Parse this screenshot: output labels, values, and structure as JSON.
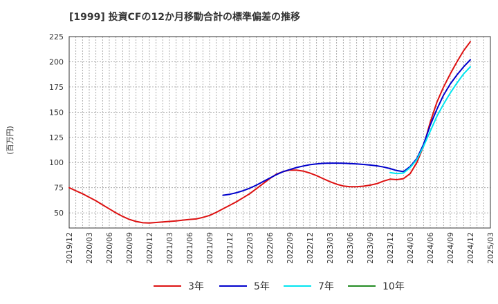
{
  "chart_data": {
    "type": "line",
    "title": "[1999]  投資CFの12か月移動合計の標準偏差の推移",
    "ylabel": "(百万円)",
    "xlabel": "",
    "ylim": [
      35,
      225
    ],
    "yticks": [
      50,
      75,
      100,
      125,
      150,
      175,
      200,
      225
    ],
    "xticks": [
      "2019/12",
      "2020/03",
      "2020/06",
      "2020/09",
      "2020/12",
      "2021/03",
      "2021/06",
      "2021/09",
      "2021/12",
      "2022/03",
      "2022/06",
      "2022/09",
      "2022/12",
      "2023/03",
      "2023/06",
      "2023/09",
      "2023/12",
      "2024/03",
      "2024/06",
      "2024/09",
      "2024/12",
      "2025/03"
    ],
    "grid": true,
    "legend_position": "bottom",
    "series": [
      {
        "name": "3年",
        "color": "#dd1111",
        "points": [
          [
            "2019/12",
            75
          ],
          [
            "2020/01",
            72
          ],
          [
            "2020/02",
            69
          ],
          [
            "2020/03",
            65.5
          ],
          [
            "2020/04",
            62
          ],
          [
            "2020/05",
            58
          ],
          [
            "2020/06",
            54
          ],
          [
            "2020/07",
            50
          ],
          [
            "2020/08",
            46.5
          ],
          [
            "2020/09",
            43.5
          ],
          [
            "2020/10",
            41.5
          ],
          [
            "2020/11",
            40.2
          ],
          [
            "2020/12",
            40
          ],
          [
            "2021/01",
            40.5
          ],
          [
            "2021/02",
            41
          ],
          [
            "2021/03",
            41.5
          ],
          [
            "2021/04",
            42
          ],
          [
            "2021/05",
            42.8
          ],
          [
            "2021/06",
            43.5
          ],
          [
            "2021/07",
            44
          ],
          [
            "2021/08",
            45.5
          ],
          [
            "2021/09",
            47.5
          ],
          [
            "2021/10",
            50.5
          ],
          [
            "2021/11",
            54
          ],
          [
            "2021/12",
            57.5
          ],
          [
            "2022/01",
            61
          ],
          [
            "2022/02",
            65
          ],
          [
            "2022/03",
            69
          ],
          [
            "2022/04",
            74
          ],
          [
            "2022/05",
            79
          ],
          [
            "2022/06",
            84
          ],
          [
            "2022/07",
            88.5
          ],
          [
            "2022/08",
            91
          ],
          [
            "2022/09",
            92.5
          ],
          [
            "2022/10",
            92.5
          ],
          [
            "2022/11",
            91.5
          ],
          [
            "2022/12",
            89.5
          ],
          [
            "2023/01",
            87
          ],
          [
            "2023/02",
            84
          ],
          [
            "2023/03",
            81
          ],
          [
            "2023/04",
            78.5
          ],
          [
            "2023/05",
            76.7
          ],
          [
            "2023/06",
            76
          ],
          [
            "2023/07",
            76
          ],
          [
            "2023/08",
            76.5
          ],
          [
            "2023/09",
            77.5
          ],
          [
            "2023/10",
            79
          ],
          [
            "2023/11",
            81.5
          ],
          [
            "2023/12",
            83.5
          ],
          [
            "2024/01",
            83
          ],
          [
            "2024/02",
            84
          ],
          [
            "2024/03",
            89
          ],
          [
            "2024/04",
            100
          ],
          [
            "2024/05",
            116
          ],
          [
            "2024/06",
            140
          ],
          [
            "2024/07",
            160
          ],
          [
            "2024/08",
            175
          ],
          [
            "2024/09",
            188
          ],
          [
            "2024/10",
            200
          ],
          [
            "2024/11",
            211
          ],
          [
            "2024/12",
            220
          ]
        ]
      },
      {
        "name": "5年",
        "color": "#0000cc",
        "points": [
          [
            "2021/11",
            67.5
          ],
          [
            "2021/12",
            68.5
          ],
          [
            "2022/01",
            70
          ],
          [
            "2022/02",
            72
          ],
          [
            "2022/03",
            74.5
          ],
          [
            "2022/04",
            77.5
          ],
          [
            "2022/05",
            81
          ],
          [
            "2022/06",
            84.5
          ],
          [
            "2022/07",
            88
          ],
          [
            "2022/08",
            91
          ],
          [
            "2022/09",
            93
          ],
          [
            "2022/10",
            95
          ],
          [
            "2022/11",
            96.5
          ],
          [
            "2022/12",
            97.8
          ],
          [
            "2023/01",
            98.6
          ],
          [
            "2023/02",
            99.2
          ],
          [
            "2023/03",
            99.4
          ],
          [
            "2023/04",
            99.4
          ],
          [
            "2023/05",
            99.3
          ],
          [
            "2023/06",
            99
          ],
          [
            "2023/07",
            98.6
          ],
          [
            "2023/08",
            98.1
          ],
          [
            "2023/09",
            97.5
          ],
          [
            "2023/10",
            96.7
          ],
          [
            "2023/11",
            95.6
          ],
          [
            "2023/12",
            94
          ],
          [
            "2024/01",
            92
          ],
          [
            "2024/02",
            91
          ],
          [
            "2024/03",
            96
          ],
          [
            "2024/04",
            104
          ],
          [
            "2024/05",
            118
          ],
          [
            "2024/06",
            137
          ],
          [
            "2024/07",
            153
          ],
          [
            "2024/08",
            167
          ],
          [
            "2024/09",
            178
          ],
          [
            "2024/10",
            187
          ],
          [
            "2024/11",
            195
          ],
          [
            "2024/12",
            202
          ]
        ]
      },
      {
        "name": "7年",
        "color": "#00e5f0",
        "points": [
          [
            "2023/12",
            90
          ],
          [
            "2024/01",
            89
          ],
          [
            "2024/02",
            89.5
          ],
          [
            "2024/03",
            95
          ],
          [
            "2024/04",
            103
          ],
          [
            "2024/05",
            116
          ],
          [
            "2024/06",
            131
          ],
          [
            "2024/07",
            146
          ],
          [
            "2024/08",
            158
          ],
          [
            "2024/09",
            169
          ],
          [
            "2024/10",
            179
          ],
          [
            "2024/11",
            188
          ],
          [
            "2024/12",
            195
          ]
        ]
      },
      {
        "name": "10年",
        "color": "#228b22",
        "points": []
      }
    ]
  }
}
